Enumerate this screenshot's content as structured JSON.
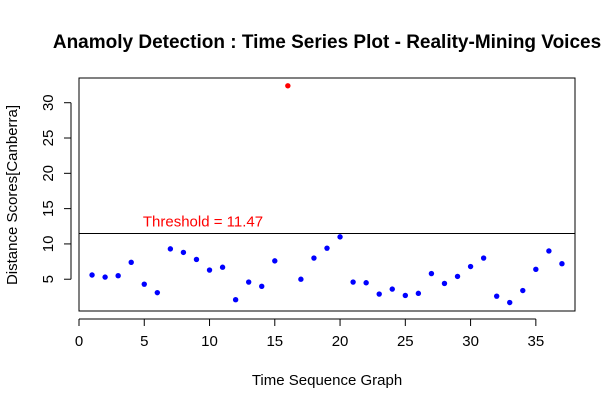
{
  "chart_data": {
    "type": "scatter",
    "title": "Anamoly Detection : Time Series Plot - Reality-Mining Voices",
    "xlabel": "Time Sequence Graph",
    "ylabel": "Distance Scores[Canberra]",
    "xlim": [
      0,
      38
    ],
    "ylim": [
      0.5,
      33.5
    ],
    "x_ticks": [
      0,
      5,
      10,
      15,
      20,
      25,
      30,
      35
    ],
    "y_ticks": [
      5,
      10,
      15,
      20,
      25,
      30
    ],
    "grid": false,
    "threshold": {
      "value": 11.47,
      "label": "Threshold = 11.47",
      "color": "#ff0000",
      "line_color": "#000000"
    },
    "colors": {
      "normal": "#0000ff",
      "anomaly": "#ff0000"
    },
    "series": [
      {
        "x": [
          1,
          2,
          3,
          4,
          5,
          6,
          7,
          8,
          9,
          10,
          11,
          12,
          13,
          14,
          15,
          16,
          17,
          18,
          19,
          20,
          21,
          22,
          23,
          24,
          25,
          26,
          27,
          28,
          29,
          30,
          31,
          32,
          33,
          34,
          35,
          36,
          37
        ],
        "y": [
          5.6,
          5.3,
          5.5,
          7.4,
          4.3,
          3.1,
          9.3,
          8.8,
          7.8,
          6.3,
          6.7,
          2.1,
          4.6,
          4.0,
          7.6,
          32.4,
          5.0,
          8.0,
          9.4,
          11.0,
          4.6,
          4.5,
          2.9,
          3.6,
          2.7,
          3.0,
          5.8,
          4.4,
          5.4,
          6.8,
          8.0,
          2.6,
          1.7,
          3.4,
          6.4,
          9.0,
          7.2
        ]
      }
    ]
  }
}
